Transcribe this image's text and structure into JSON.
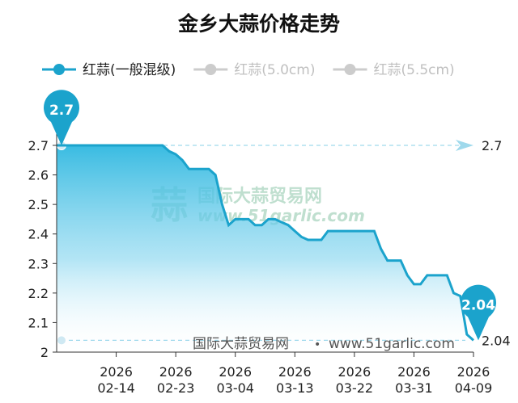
{
  "chart_data": {
    "type": "area",
    "title": "金乡大蒜价格走势",
    "xlabel": "",
    "ylabel": "",
    "ylim": [
      2,
      2.7
    ],
    "yticks": [
      2,
      2.1,
      2.2,
      2.3,
      2.4,
      2.5,
      2.6,
      2.7
    ],
    "xticks": [
      {
        "top": "2026",
        "bottom": "02-14"
      },
      {
        "top": "2026",
        "bottom": "02-23"
      },
      {
        "top": "2026",
        "bottom": "03-04"
      },
      {
        "top": "2026",
        "bottom": "03-13"
      },
      {
        "top": "2026",
        "bottom": "03-22"
      },
      {
        "top": "2026",
        "bottom": "03-31"
      },
      {
        "top": "2026",
        "bottom": "04-09"
      }
    ],
    "grid": false,
    "legend_position": "top-left",
    "legend": [
      {
        "name": "红蒜(一般混级)",
        "active": true
      },
      {
        "name": "红蒜(5.0cm)",
        "active": false
      },
      {
        "name": "红蒜(5.5cm)",
        "active": false
      }
    ],
    "series": [
      {
        "name": "红蒜(一般混级)",
        "color": "#1ba3cc",
        "x": [
          "2026-02-05",
          "2026-02-14",
          "2026-02-20",
          "2026-02-21",
          "2026-02-22",
          "2026-02-23",
          "2026-02-24",
          "2026-02-25",
          "2026-02-26",
          "2026-02-27",
          "2026-02-28",
          "2026-03-01",
          "2026-03-02",
          "2026-03-03",
          "2026-03-04",
          "2026-03-05",
          "2026-03-06",
          "2026-03-07",
          "2026-03-08",
          "2026-03-09",
          "2026-03-10",
          "2026-03-11",
          "2026-03-12",
          "2026-03-13",
          "2026-03-14",
          "2026-03-15",
          "2026-03-16",
          "2026-03-17",
          "2026-03-18",
          "2026-03-19",
          "2026-03-20",
          "2026-03-21",
          "2026-03-22",
          "2026-03-23",
          "2026-03-24",
          "2026-03-25",
          "2026-03-26",
          "2026-03-27",
          "2026-03-28",
          "2026-03-29",
          "2026-03-30",
          "2026-03-31",
          "2026-04-01",
          "2026-04-02",
          "2026-04-03",
          "2026-04-04",
          "2026-04-05",
          "2026-04-06",
          "2026-04-07",
          "2026-04-08",
          "2026-04-09"
        ],
        "values": [
          2.7,
          2.7,
          2.7,
          2.7,
          2.68,
          2.67,
          2.65,
          2.62,
          2.62,
          2.62,
          2.62,
          2.6,
          2.5,
          2.43,
          2.45,
          2.45,
          2.45,
          2.43,
          2.43,
          2.45,
          2.45,
          2.44,
          2.43,
          2.41,
          2.39,
          2.38,
          2.38,
          2.38,
          2.41,
          2.41,
          2.41,
          2.41,
          2.41,
          2.41,
          2.41,
          2.41,
          2.35,
          2.31,
          2.31,
          2.31,
          2.26,
          2.23,
          2.23,
          2.26,
          2.26,
          2.26,
          2.26,
          2.2,
          2.19,
          2.06,
          2.04
        ]
      }
    ],
    "markers": [
      {
        "label": "2.7",
        "point": "max"
      },
      {
        "label": "2.04",
        "point": "last"
      }
    ],
    "reference_lines": [
      {
        "value": 2.7,
        "label": "2.7"
      },
      {
        "value": 2.04,
        "label": "2.04"
      }
    ],
    "watermark": {
      "name": "国际大蒜贸易网",
      "url": "www.51garlic.com"
    },
    "footer": {
      "site": "国际大蒜贸易网",
      "separator": "•",
      "url": "www.51garlic.com"
    },
    "colors": {
      "line": "#1ba3cc",
      "marker": "#1ba3cc",
      "reference": "#9fd9ec",
      "inactive": "#cccccc",
      "watermark": "#8cc6a8"
    }
  }
}
